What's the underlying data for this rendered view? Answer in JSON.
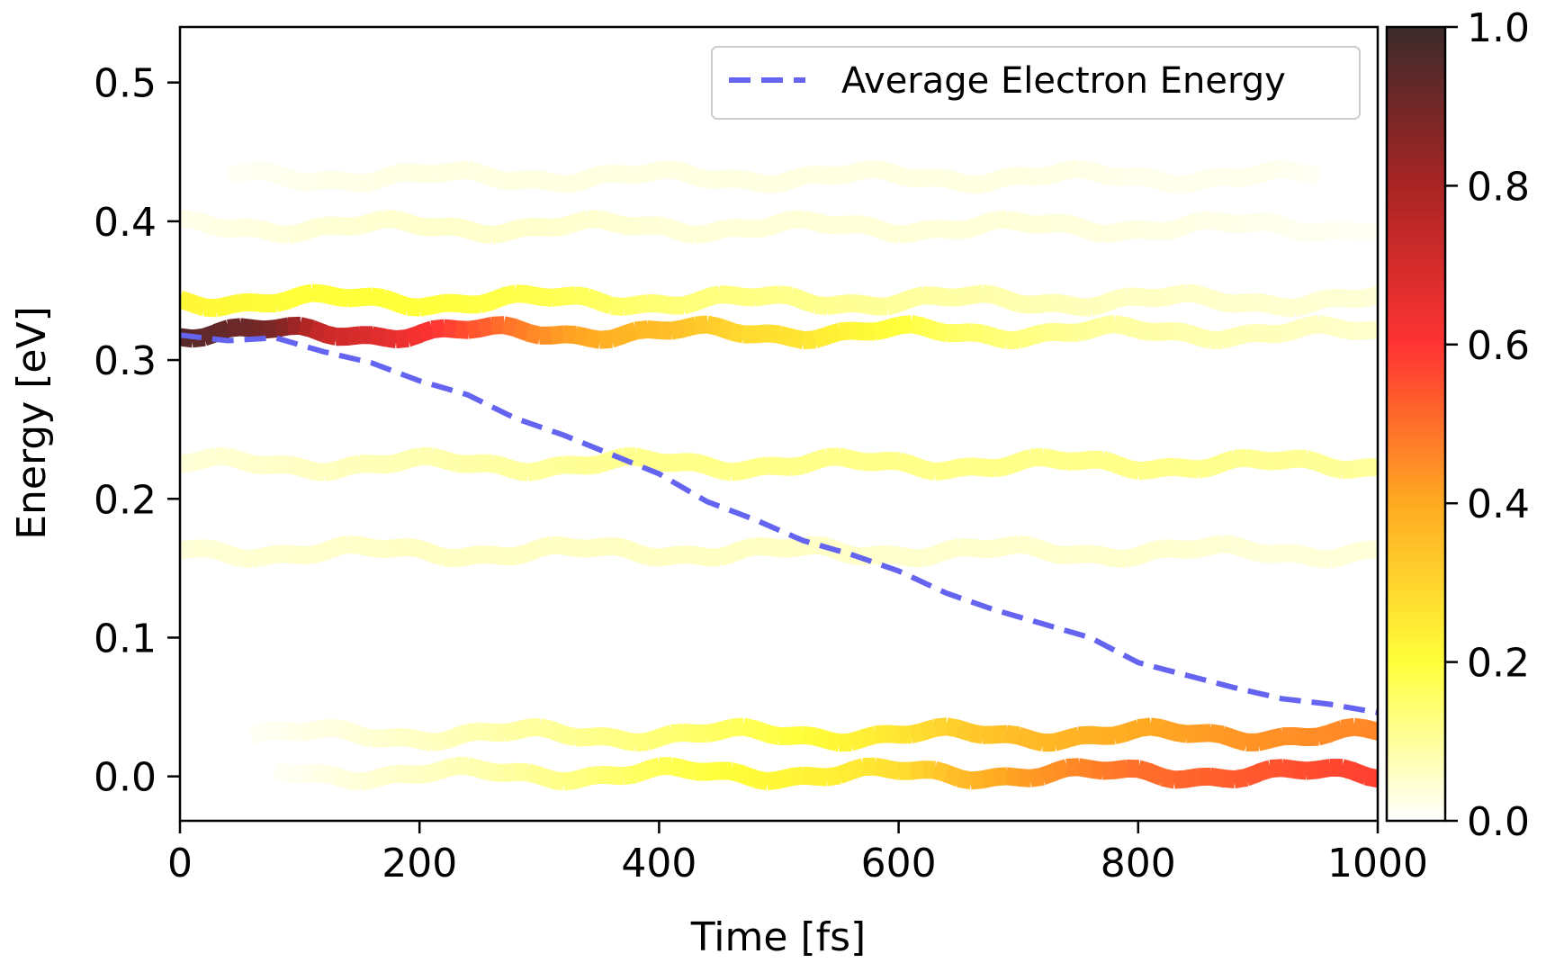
{
  "chart_data": {
    "type": "line",
    "xlabel": "Time [fs]",
    "ylabel": "Energy [eV]",
    "xlim": [
      0,
      1000
    ],
    "ylim": [
      -0.032,
      0.54
    ],
    "xticks": [
      "0",
      "200",
      "400",
      "600",
      "800",
      "1000"
    ],
    "yticks": [
      "0.0",
      "0.1",
      "0.2",
      "0.3",
      "0.4",
      "0.5"
    ],
    "grid": false,
    "legend": {
      "placement": "top-right",
      "entries": [
        "Average Electron Energy"
      ]
    },
    "colorbar": {
      "colormap": "hot_r",
      "range": [
        0,
        1
      ],
      "ticks": [
        "0.0",
        "0.2",
        "0.4",
        "0.6",
        "0.8",
        "1.0"
      ]
    },
    "average_series": {
      "name": "Average Electron Energy",
      "style": "dashed",
      "color": "#6464f0",
      "x": [
        0,
        40,
        80,
        120,
        160,
        200,
        240,
        280,
        320,
        360,
        400,
        440,
        480,
        520,
        560,
        600,
        640,
        680,
        720,
        760,
        800,
        840,
        880,
        920,
        960,
        1000
      ],
      "y": [
        0.318,
        0.314,
        0.316,
        0.306,
        0.298,
        0.285,
        0.275,
        0.258,
        0.246,
        0.232,
        0.218,
        0.198,
        0.185,
        0.17,
        0.16,
        0.148,
        0.132,
        0.12,
        0.11,
        0.1,
        0.082,
        0.073,
        0.064,
        0.056,
        0.052,
        0.046
      ]
    },
    "occupation_bands": [
      {
        "energy": 0.432,
        "x": [
          40,
          100,
          200,
          300,
          400,
          500,
          600,
          700,
          800,
          900,
          950
        ],
        "occupation": [
          0.01,
          0.02,
          0.03,
          0.03,
          0.03,
          0.03,
          0.03,
          0.03,
          0.02,
          0.02,
          0.01
        ]
      },
      {
        "energy": 0.396,
        "x": [
          0,
          100,
          200,
          300,
          400,
          500,
          600,
          700,
          800,
          900,
          1000
        ],
        "occupation": [
          0.02,
          0.04,
          0.05,
          0.05,
          0.04,
          0.04,
          0.04,
          0.04,
          0.03,
          0.02,
          0.01
        ]
      },
      {
        "energy": 0.343,
        "x": [
          0,
          100,
          200,
          300,
          400,
          500,
          600,
          700,
          800,
          900,
          1000
        ],
        "occupation": [
          0.22,
          0.2,
          0.2,
          0.18,
          0.14,
          0.12,
          0.1,
          0.08,
          0.06,
          0.05,
          0.04
        ]
      },
      {
        "energy": 0.32,
        "x": [
          0,
          40,
          80,
          120,
          160,
          200,
          240,
          280,
          320,
          360,
          400,
          440,
          480,
          520,
          560,
          600,
          640,
          680,
          720,
          760,
          800,
          850,
          900,
          950,
          1000
        ],
        "occupation": [
          0.95,
          0.92,
          0.88,
          0.72,
          0.68,
          0.62,
          0.55,
          0.48,
          0.42,
          0.38,
          0.36,
          0.32,
          0.28,
          0.26,
          0.22,
          0.2,
          0.16,
          0.14,
          0.12,
          0.1,
          0.09,
          0.08,
          0.07,
          0.06,
          0.05
        ]
      },
      {
        "energy": 0.225,
        "x": [
          0,
          100,
          200,
          300,
          400,
          500,
          600,
          700,
          800,
          900,
          1000
        ],
        "occupation": [
          0.04,
          0.06,
          0.08,
          0.1,
          0.12,
          0.12,
          0.12,
          0.12,
          0.12,
          0.11,
          0.1
        ]
      },
      {
        "energy": 0.162,
        "x": [
          0,
          100,
          200,
          300,
          400,
          500,
          600,
          700,
          800,
          900,
          1000
        ],
        "occupation": [
          0.04,
          0.05,
          0.06,
          0.06,
          0.06,
          0.06,
          0.05,
          0.05,
          0.05,
          0.04,
          0.04
        ]
      },
      {
        "energy": 0.03,
        "x": [
          60,
          150,
          250,
          350,
          450,
          550,
          600,
          650,
          700,
          800,
          850,
          900,
          950,
          1000
        ],
        "occupation": [
          0.01,
          0.04,
          0.08,
          0.12,
          0.16,
          0.22,
          0.26,
          0.32,
          0.36,
          0.4,
          0.42,
          0.44,
          0.45,
          0.46
        ]
      },
      {
        "energy": 0.002,
        "x": [
          80,
          150,
          250,
          350,
          450,
          550,
          600,
          650,
          700,
          750,
          800,
          850,
          900,
          950,
          1000
        ],
        "occupation": [
          0.01,
          0.04,
          0.08,
          0.14,
          0.2,
          0.24,
          0.28,
          0.36,
          0.42,
          0.46,
          0.5,
          0.52,
          0.54,
          0.56,
          0.58
        ]
      }
    ]
  }
}
